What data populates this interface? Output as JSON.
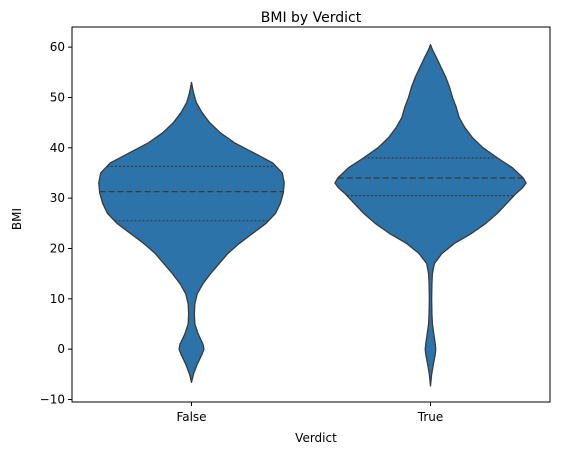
{
  "chart_data": {
    "type": "violin",
    "title": "BMI by Verdict",
    "xlabel": "Verdict",
    "ylabel": "BMI",
    "categories": [
      "False",
      "True"
    ],
    "ylim": [
      -10.5,
      64
    ],
    "yticks": [
      -10,
      0,
      10,
      20,
      30,
      40,
      50,
      60
    ],
    "grid": false,
    "fill_color": "#2c73a9",
    "edge_color": "#3a3a3a",
    "violins": [
      {
        "category": "False",
        "range": [
          -6.6,
          53
        ],
        "quartiles": {
          "q1": 25.5,
          "median": 31.3,
          "q3": 36.3
        },
        "density_profile": [
          [
            -6.6,
            0.0
          ],
          [
            -5,
            0.02
          ],
          [
            -3,
            0.06
          ],
          [
            -1,
            0.11
          ],
          [
            0,
            0.13
          ],
          [
            1,
            0.12
          ],
          [
            3,
            0.07
          ],
          [
            5,
            0.035
          ],
          [
            7,
            0.03
          ],
          [
            9,
            0.035
          ],
          [
            11,
            0.06
          ],
          [
            13,
            0.12
          ],
          [
            15,
            0.2
          ],
          [
            17,
            0.29
          ],
          [
            19,
            0.38
          ],
          [
            21,
            0.5
          ],
          [
            23,
            0.64
          ],
          [
            25,
            0.78
          ],
          [
            27,
            0.88
          ],
          [
            29,
            0.93
          ],
          [
            31,
            0.96
          ],
          [
            33,
            0.97
          ],
          [
            35,
            0.95
          ],
          [
            37,
            0.85
          ],
          [
            39,
            0.65
          ],
          [
            41,
            0.45
          ],
          [
            43,
            0.3
          ],
          [
            45,
            0.19
          ],
          [
            47,
            0.11
          ],
          [
            49,
            0.05
          ],
          [
            51,
            0.02
          ],
          [
            53,
            0.0
          ]
        ]
      },
      {
        "category": "True",
        "range": [
          -7.3,
          60.5
        ],
        "quartiles": {
          "q1": 30.5,
          "median": 34.0,
          "q3": 38.0
        },
        "density_profile": [
          [
            -7.3,
            0.0
          ],
          [
            -5,
            0.012
          ],
          [
            -3,
            0.03
          ],
          [
            -1,
            0.05
          ],
          [
            0,
            0.055
          ],
          [
            1,
            0.05
          ],
          [
            3,
            0.035
          ],
          [
            5,
            0.02
          ],
          [
            7,
            0.015
          ],
          [
            10,
            0.012
          ],
          [
            13,
            0.015
          ],
          [
            15,
            0.02
          ],
          [
            17,
            0.04
          ],
          [
            19,
            0.12
          ],
          [
            21,
            0.25
          ],
          [
            23,
            0.43
          ],
          [
            25,
            0.58
          ],
          [
            27,
            0.7
          ],
          [
            29,
            0.8
          ],
          [
            31,
            0.9
          ],
          [
            32,
            0.96
          ],
          [
            33,
            1.0
          ],
          [
            34,
            0.97
          ],
          [
            36,
            0.86
          ],
          [
            38,
            0.7
          ],
          [
            40,
            0.55
          ],
          [
            42,
            0.44
          ],
          [
            44,
            0.36
          ],
          [
            46,
            0.3
          ],
          [
            48,
            0.27
          ],
          [
            50,
            0.23
          ],
          [
            52,
            0.2
          ],
          [
            54,
            0.16
          ],
          [
            56,
            0.11
          ],
          [
            58,
            0.06
          ],
          [
            59.5,
            0.02
          ],
          [
            60.5,
            0.0
          ]
        ]
      }
    ]
  }
}
